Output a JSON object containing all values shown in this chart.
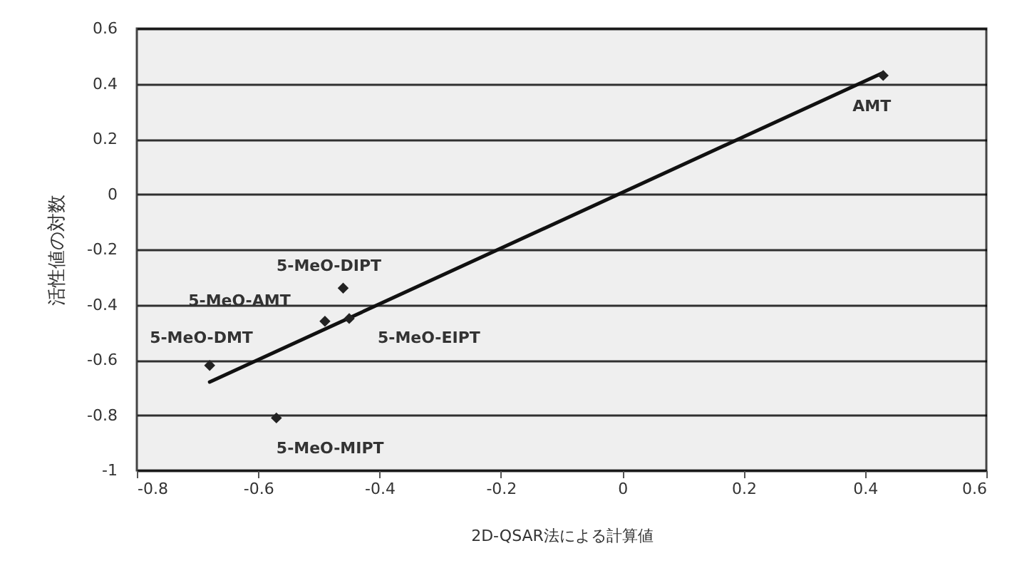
{
  "chart_data": {
    "type": "scatter",
    "xlabel": "2D-QSAR法による計算値",
    "ylabel": "活性値の対数",
    "xlim": [
      -0.8,
      0.6
    ],
    "xticks": [
      -0.8,
      -0.6,
      -0.4,
      -0.2,
      0,
      0.2,
      0.4,
      0.6
    ],
    "ylim": [
      -1,
      0.6
    ],
    "yticks": [
      -1,
      -0.8,
      -0.6,
      -0.4,
      -0.2,
      0,
      0.2,
      0.4,
      0.6
    ],
    "grid": "y",
    "marker": "diamond",
    "series": [
      {
        "type": "line",
        "marker": "none",
        "color": "#111111",
        "x": [
          -0.68,
          0.43
        ],
        "values": [
          -0.68,
          0.44
        ]
      },
      {
        "type": "scatter",
        "color": "#222222",
        "x": [
          0.43,
          -0.46,
          -0.49,
          -0.45,
          -0.68,
          -0.57
        ],
        "values": [
          0.43,
          -0.34,
          -0.46,
          -0.45,
          -0.62,
          -0.81
        ]
      }
    ],
    "annotations": [
      {
        "text": "AMT",
        "x": 0.43,
        "y": 0.43
      },
      {
        "text": "5-MeO-DIPT",
        "x": -0.46,
        "y": -0.34
      },
      {
        "text": "5-MeO-AMT",
        "x": -0.49,
        "y": -0.46
      },
      {
        "text": "5-MeO-EIPT",
        "x": -0.45,
        "y": -0.45
      },
      {
        "text": "5-MeO-DMT",
        "x": -0.68,
        "y": -0.62
      },
      {
        "text": "5-MeO-MIPT",
        "x": -0.57,
        "y": -0.81
      }
    ]
  }
}
